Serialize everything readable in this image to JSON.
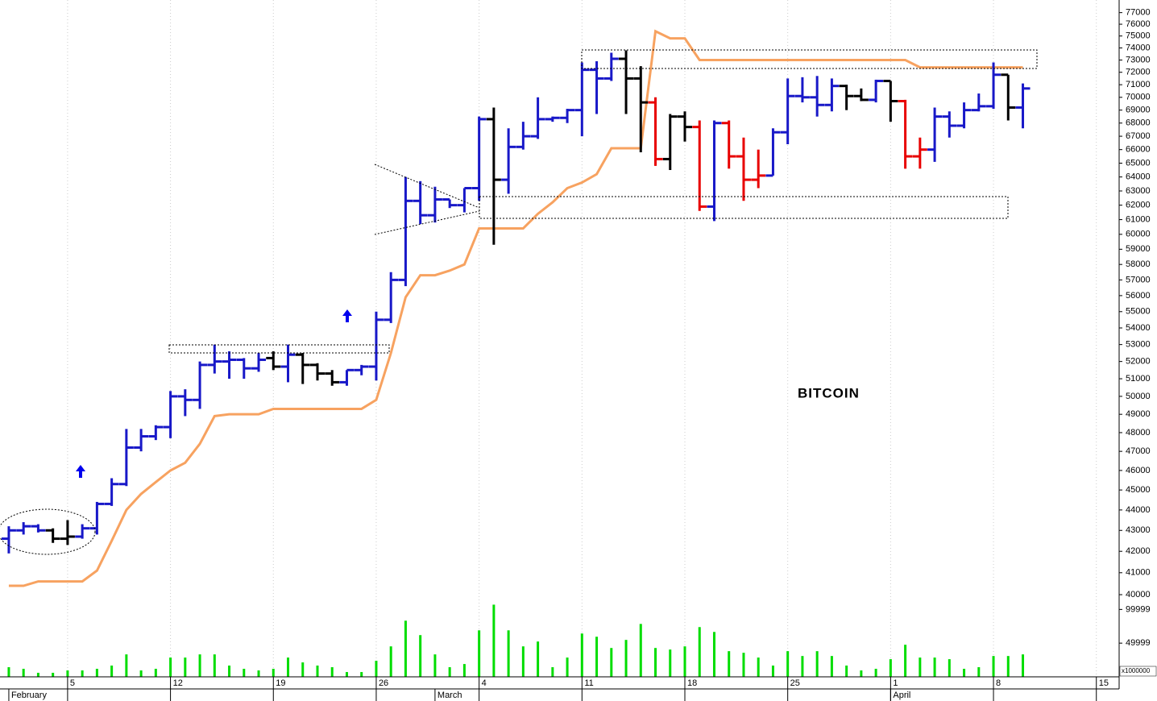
{
  "chart_data": [
    {
      "type": "ohlc",
      "annotation": "BITCOIN",
      "log": true,
      "ylim": [
        39640,
        78100
      ],
      "yticks": [
        40000,
        41000,
        42000,
        43000,
        44000,
        45000,
        46000,
        47000,
        48000,
        49000,
        50000,
        51000,
        52000,
        53000,
        54000,
        55000,
        56000,
        57000,
        58000,
        59000,
        60000,
        61000,
        62000,
        63000,
        64000,
        65000,
        66000,
        67000,
        68000,
        69000,
        70000,
        71000,
        72000,
        73000,
        74000,
        75000,
        76000,
        77000
      ],
      "x": [
        0,
        1,
        2,
        3,
        4,
        5,
        6,
        7,
        8,
        9,
        10,
        11,
        12,
        13,
        14,
        15,
        16,
        17,
        18,
        19,
        20,
        21,
        22,
        23,
        24,
        25,
        26,
        27,
        28,
        29,
        30,
        31,
        32,
        33,
        34,
        35,
        36,
        37,
        38,
        39,
        40,
        41,
        42,
        43,
        44,
        45,
        46,
        47,
        48,
        49,
        50,
        51,
        52,
        53,
        54,
        55,
        56,
        57,
        58,
        59,
        60,
        61,
        62,
        63,
        64,
        65,
        66,
        67,
        68,
        69
      ],
      "open": [
        42600,
        43000,
        43200,
        43000,
        42600,
        42700,
        43100,
        44300,
        45300,
        47200,
        47800,
        48300,
        50000,
        49800,
        51800,
        52000,
        52100,
        51600,
        52200,
        51700,
        52400,
        51800,
        51300,
        50800,
        51500,
        51700,
        54500,
        57000,
        62300,
        61300,
        62400,
        62000,
        63200,
        68300,
        63800,
        66200,
        67000,
        68300,
        68400,
        69000,
        72200,
        71500,
        73100,
        71500,
        69600,
        65300,
        68500,
        67700,
        61900,
        68000,
        65500,
        63800,
        64100,
        67300,
        70100,
        70000,
        69400,
        70900,
        70100,
        69800,
        71300,
        69700,
        65500,
        66000,
        68500,
        67800,
        69000,
        69300,
        71800,
        69200
      ],
      "high": [
        43200,
        43400,
        43300,
        43100,
        43500,
        43300,
        44400,
        45600,
        48200,
        48200,
        48400,
        50300,
        50400,
        52000,
        53000,
        52600,
        52200,
        52500,
        52600,
        53000,
        52500,
        51900,
        51500,
        51500,
        51800,
        55000,
        57500,
        64000,
        63700,
        63300,
        62400,
        63200,
        68500,
        69200,
        67600,
        68100,
        70000,
        68500,
        69100,
        72800,
        72900,
        73600,
        73800,
        72500,
        70000,
        68700,
        68900,
        68200,
        68200,
        68200,
        66900,
        66000,
        67600,
        71500,
        71600,
        71700,
        71500,
        71000,
        70700,
        71400,
        71300,
        69800,
        66900,
        69200,
        68900,
        69600,
        70300,
        72800,
        71800,
        71100
      ],
      "low": [
        41900,
        42800,
        42900,
        42400,
        42300,
        42600,
        42800,
        44200,
        45200,
        47000,
        47600,
        47700,
        48900,
        49300,
        51300,
        51000,
        51000,
        51400,
        51500,
        50800,
        50700,
        50900,
        50600,
        50600,
        51200,
        50900,
        54300,
        56600,
        60700,
        60800,
        61800,
        61500,
        62300,
        59300,
        62800,
        66000,
        66800,
        68100,
        68000,
        67000,
        68700,
        71300,
        68700,
        65800,
        64800,
        64500,
        66600,
        61600,
        60900,
        64600,
        62300,
        63200,
        64100,
        66400,
        69600,
        68500,
        68900,
        69000,
        69700,
        69600,
        68100,
        64600,
        64600,
        65100,
        66900,
        67600,
        68900,
        69100,
        68200,
        67600
      ],
      "close": [
        43000,
        43200,
        43000,
        42600,
        42700,
        43100,
        44300,
        45300,
        47200,
        47800,
        48300,
        50000,
        49800,
        51800,
        52000,
        52100,
        51600,
        52100,
        51700,
        52400,
        51800,
        51300,
        50800,
        51500,
        51700,
        54500,
        57000,
        62300,
        61300,
        62400,
        62000,
        63200,
        68300,
        63800,
        66200,
        67000,
        68300,
        68400,
        69000,
        72200,
        71500,
        73100,
        71500,
        69600,
        65300,
        68500,
        67700,
        61900,
        68000,
        65500,
        63800,
        64100,
        67300,
        70100,
        70000,
        69400,
        70900,
        70100,
        69800,
        71300,
        69700,
        65500,
        66000,
        68500,
        67800,
        69000,
        69300,
        71800,
        69200,
        70700
      ],
      "colors": [
        "#1818c8",
        "#1818c8",
        "#1818c8",
        "#000000",
        "#000000",
        "#1818c8",
        "#1818c8",
        "#1818c8",
        "#1818c8",
        "#1818c8",
        "#1818c8",
        "#1818c8",
        "#1818c8",
        "#1818c8",
        "#1818c8",
        "#1818c8",
        "#1818c8",
        "#1818c8",
        "#000000",
        "#1818c8",
        "#000000",
        "#000000",
        "#000000",
        "#1818c8",
        "#1818c8",
        "#1818c8",
        "#1818c8",
        "#1818c8",
        "#1818c8",
        "#1818c8",
        "#1818c8",
        "#1818c8",
        "#1818c8",
        "#000000",
        "#1818c8",
        "#1818c8",
        "#1818c8",
        "#1818c8",
        "#1818c8",
        "#1818c8",
        "#1818c8",
        "#1818c8",
        "#000000",
        "#000000",
        "#e80000",
        "#000000",
        "#000000",
        "#e80000",
        "#1818c8",
        "#e80000",
        "#e80000",
        "#e80000",
        "#1818c8",
        "#1818c8",
        "#1818c8",
        "#1818c8",
        "#1818c8",
        "#000000",
        "#000000",
        "#1818c8",
        "#000000",
        "#e80000",
        "#e80000",
        "#1818c8",
        "#1818c8",
        "#1818c8",
        "#1818c8",
        "#1818c8",
        "#000000",
        "#1818c8"
      ],
      "line": {
        "color": "#f7a260",
        "values": [
          40400,
          40400,
          40600,
          40600,
          40600,
          40600,
          41100,
          42500,
          44000,
          44800,
          45400,
          46000,
          46400,
          47400,
          48900,
          49000,
          49000,
          49000,
          49300,
          49300,
          49300,
          49300,
          49300,
          49300,
          49300,
          49800,
          52500,
          55900,
          57300,
          57300,
          57600,
          58000,
          60400,
          60400,
          60400,
          60400,
          61400,
          62200,
          63200,
          63600,
          64200,
          66100,
          66100,
          66100,
          75400,
          74800,
          74800,
          73000,
          73000,
          73000,
          73000,
          73000,
          73000,
          73000,
          73000,
          73000,
          73000,
          73000,
          73000,
          73000,
          73000,
          73000,
          72400,
          72400,
          72400,
          72400,
          72400,
          72400,
          72400,
          72400
        ]
      }
    },
    {
      "type": "bar",
      "color": "#00dd00",
      "unit_label": "x1000000",
      "ylim": [
        0,
        110000
      ],
      "yticks": [
        49999,
        99999
      ],
      "xlim": [
        -0.6,
        75.55
      ],
      "xticks": [
        {
          "value": 4,
          "label": "5"
        },
        {
          "value": 11,
          "label": "12"
        },
        {
          "value": 18,
          "label": "19"
        },
        {
          "value": 25,
          "label": "26"
        },
        {
          "value": 32,
          "label": "4"
        },
        {
          "value": 39,
          "label": "11"
        },
        {
          "value": 46,
          "label": "18"
        },
        {
          "value": 53,
          "label": "25"
        },
        {
          "value": 60,
          "label": "1"
        },
        {
          "value": 67,
          "label": "8"
        },
        {
          "value": 74,
          "label": "15"
        }
      ],
      "month_ticks": [
        {
          "value": 0,
          "label": "February"
        },
        {
          "value": 29,
          "label": "March"
        },
        {
          "value": 60,
          "label": "April"
        }
      ],
      "x": [
        0,
        1,
        2,
        3,
        4,
        5,
        6,
        7,
        8,
        9,
        10,
        11,
        12,
        13,
        14,
        15,
        16,
        17,
        18,
        19,
        20,
        21,
        22,
        23,
        24,
        25,
        26,
        27,
        28,
        29,
        30,
        31,
        32,
        33,
        34,
        35,
        36,
        37,
        38,
        39,
        40,
        41,
        42,
        43,
        44,
        45,
        46,
        47,
        48,
        49,
        50,
        51,
        52,
        53,
        54,
        55,
        56,
        57,
        58,
        59,
        60,
        61,
        62,
        63,
        64,
        65,
        66,
        67,
        68,
        69
      ],
      "values": [
        14300,
        11900,
        6000,
        6000,
        9500,
        9500,
        11900,
        16700,
        33300,
        9500,
        11900,
        28600,
        28600,
        33300,
        33300,
        16700,
        11900,
        9500,
        11900,
        28600,
        21400,
        16700,
        14300,
        7100,
        7100,
        23800,
        45200,
        83300,
        61900,
        33300,
        14300,
        19000,
        69000,
        107100,
        69000,
        45200,
        52400,
        14300,
        28600,
        64300,
        59500,
        42800,
        54800,
        78500,
        42800,
        40500,
        45200,
        73800,
        66600,
        38100,
        35700,
        28600,
        16700,
        38100,
        30900,
        38100,
        30900,
        16700,
        9500,
        11900,
        26200,
        47600,
        28600,
        28600,
        26200,
        11900,
        14300,
        30900,
        30900,
        33300
      ]
    }
  ]
}
